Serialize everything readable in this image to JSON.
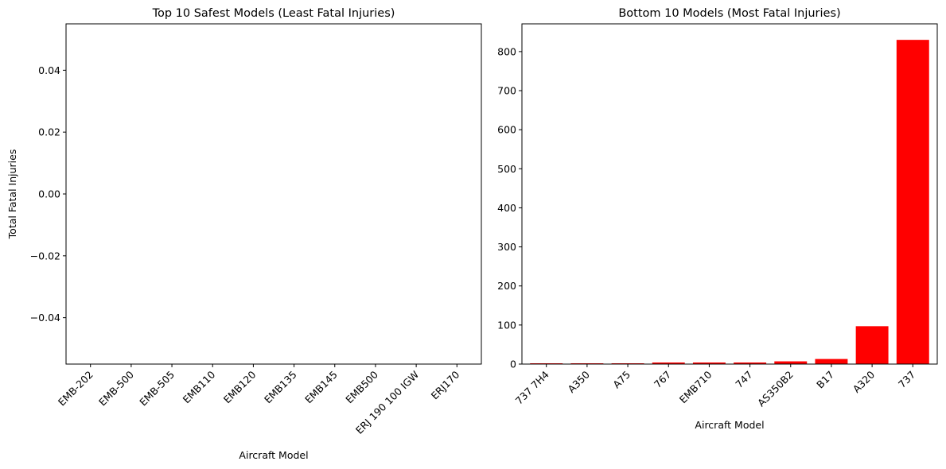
{
  "chart_data": [
    {
      "type": "bar",
      "title": "Top 10 Safest Models (Least Fatal Injuries)",
      "xlabel": "Aircraft Model",
      "ylabel": "Total Fatal Injuries",
      "categories": [
        "EMB-202",
        "EMB-500",
        "EMB-505",
        "EMB110",
        "EMB120",
        "EMB135",
        "EMB145",
        "EMB500",
        "ERJ 190 100 IGW",
        "ERJ170"
      ],
      "values": [
        0,
        0,
        0,
        0,
        0,
        0,
        0,
        0,
        0,
        0
      ],
      "ylim": [
        -0.055,
        0.055
      ],
      "yticks": [
        -0.04,
        -0.02,
        0.0,
        0.02,
        0.04
      ],
      "ytick_labels": [
        "−0.04",
        "−0.02",
        "0.00",
        "0.02",
        "0.04"
      ],
      "color": "#1f77b4",
      "grid": false
    },
    {
      "type": "bar",
      "title": "Bottom 10 Models (Most Fatal Injuries)",
      "xlabel": "Aircraft Model",
      "ylabel": "",
      "categories": [
        "737 7H4",
        "A350",
        "A75",
        "767",
        "EMB710",
        "747",
        "AS350B2",
        "B17",
        "A320",
        "737"
      ],
      "values": [
        2,
        2,
        2,
        4,
        4,
        4,
        7,
        13,
        97,
        830
      ],
      "ylim": [
        0,
        871
      ],
      "yticks": [
        0,
        100,
        200,
        300,
        400,
        500,
        600,
        700,
        800
      ],
      "ytick_labels": [
        "0",
        "100",
        "200",
        "300",
        "400",
        "500",
        "600",
        "700",
        "800"
      ],
      "color": "#ff0000",
      "grid": false
    }
  ]
}
